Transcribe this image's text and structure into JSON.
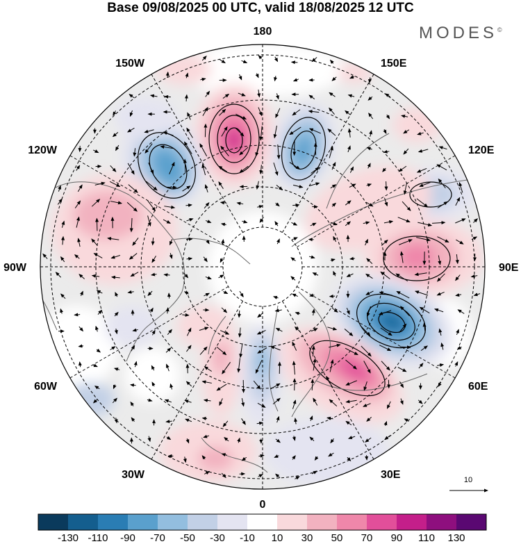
{
  "title": "Base 09/08/2025 00 UTC, valid 18/08/2025 12 UTC",
  "brand": "MODES",
  "brand_mark": "©",
  "longitude_labels": {
    "lon_180": "180",
    "lon_150e": "150E",
    "lon_120e": "120E",
    "lon_90e": "90E",
    "lon_60e": "60E",
    "lon_30e": "30E",
    "lon_0": "0",
    "lon_30w": "30W",
    "lon_60w": "60W",
    "lon_90w": "90W",
    "lon_120w": "120W",
    "lon_150w": "150W"
  },
  "reference_vector_label": "10",
  "colorbar": {
    "colors": [
      "#0a3a5c",
      "#145e8e",
      "#2a7db4",
      "#5aa0cd",
      "#93bedf",
      "#c2d0e6",
      "#e4e4f1",
      "#ffffff",
      "#f9d9dc",
      "#f2b2c0",
      "#ef87aa",
      "#e24f9a",
      "#c41f8a",
      "#8e0f7e",
      "#5a0872"
    ],
    "tick_labels": [
      "-130",
      "-110",
      "-90",
      "-70",
      "-50",
      "-30",
      "-10",
      "10",
      "30",
      "50",
      "70",
      "90",
      "110",
      "130"
    ]
  },
  "palette": {
    "neutral_fill": "#ebebeb",
    "coast": "#666666",
    "grid": "#000000"
  }
}
